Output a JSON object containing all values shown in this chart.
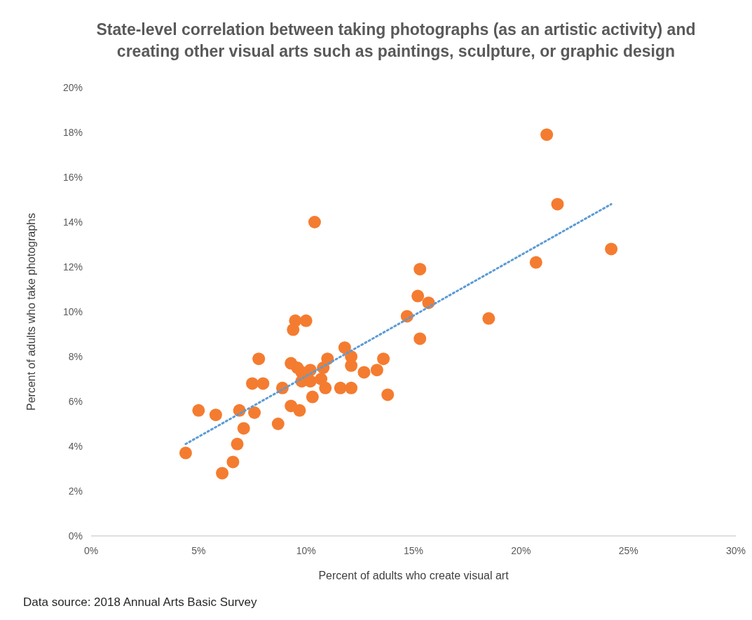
{
  "chart_data": {
    "type": "scatter",
    "title": "State-level correlation between taking photographs (as an artistic activity) and creating other visual arts such as paintings, sculpture, or graphic design",
    "xlabel": "Percent of adults who create visual art",
    "ylabel": "Percent of adults who take photographs",
    "annotations": [
      "Data source: 2018 Annual Arts Basic Survey"
    ],
    "xlim": [
      0,
      30
    ],
    "ylim": [
      0,
      20
    ],
    "xticks": [
      {
        "value": 0,
        "label": "0%"
      },
      {
        "value": 5,
        "label": "5%"
      },
      {
        "value": 10,
        "label": "10%"
      },
      {
        "value": 15,
        "label": "15%"
      },
      {
        "value": 20,
        "label": "20%"
      },
      {
        "value": 25,
        "label": "25%"
      },
      {
        "value": 30,
        "label": "30%"
      }
    ],
    "yticks": [
      {
        "value": 0,
        "label": "0%"
      },
      {
        "value": 2,
        "label": "2%"
      },
      {
        "value": 4,
        "label": "4%"
      },
      {
        "value": 6,
        "label": "6%"
      },
      {
        "value": 8,
        "label": "8%"
      },
      {
        "value": 10,
        "label": "10%"
      },
      {
        "value": 12,
        "label": "12%"
      },
      {
        "value": 14,
        "label": "14%"
      },
      {
        "value": 16,
        "label": "16%"
      },
      {
        "value": 18,
        "label": "18%"
      },
      {
        "value": 20,
        "label": "20%"
      }
    ],
    "grid": false,
    "series": [
      {
        "color": "#f47c30",
        "marker": "circle",
        "x": [
          4.4,
          5.0,
          5.8,
          6.1,
          6.6,
          6.8,
          6.9,
          7.1,
          7.5,
          7.6,
          7.8,
          8.0,
          8.7,
          8.9,
          9.3,
          9.3,
          9.4,
          9.5,
          9.6,
          9.7,
          9.8,
          9.8,
          10.0,
          10.2,
          10.2,
          10.3,
          10.4,
          10.7,
          10.8,
          10.9,
          11.0,
          11.6,
          11.8,
          12.1,
          12.1,
          12.1,
          12.7,
          13.3,
          13.6,
          13.8,
          14.7,
          15.2,
          15.3,
          15.3,
          15.7,
          18.5,
          20.7,
          21.2,
          21.7,
          24.2
        ],
        "values": [
          3.7,
          5.6,
          5.4,
          2.8,
          3.3,
          4.1,
          5.6,
          4.8,
          6.8,
          5.5,
          7.9,
          6.8,
          5.0,
          6.6,
          7.7,
          5.8,
          9.2,
          9.6,
          7.5,
          5.6,
          7.3,
          6.9,
          9.6,
          7.4,
          6.9,
          6.2,
          14.0,
          7.0,
          7.5,
          6.6,
          7.9,
          6.6,
          8.4,
          8.0,
          7.6,
          6.6,
          7.3,
          7.4,
          7.9,
          6.3,
          9.8,
          10.7,
          11.9,
          8.8,
          10.4,
          9.7,
          12.2,
          17.9,
          14.8,
          12.8
        ]
      },
      {
        "type": "line",
        "color": "#5b9bd5",
        "line_style": "dotted",
        "marker": "none",
        "x": [
          4.4,
          24.2
        ],
        "values": [
          4.1,
          14.8
        ]
      }
    ]
  }
}
